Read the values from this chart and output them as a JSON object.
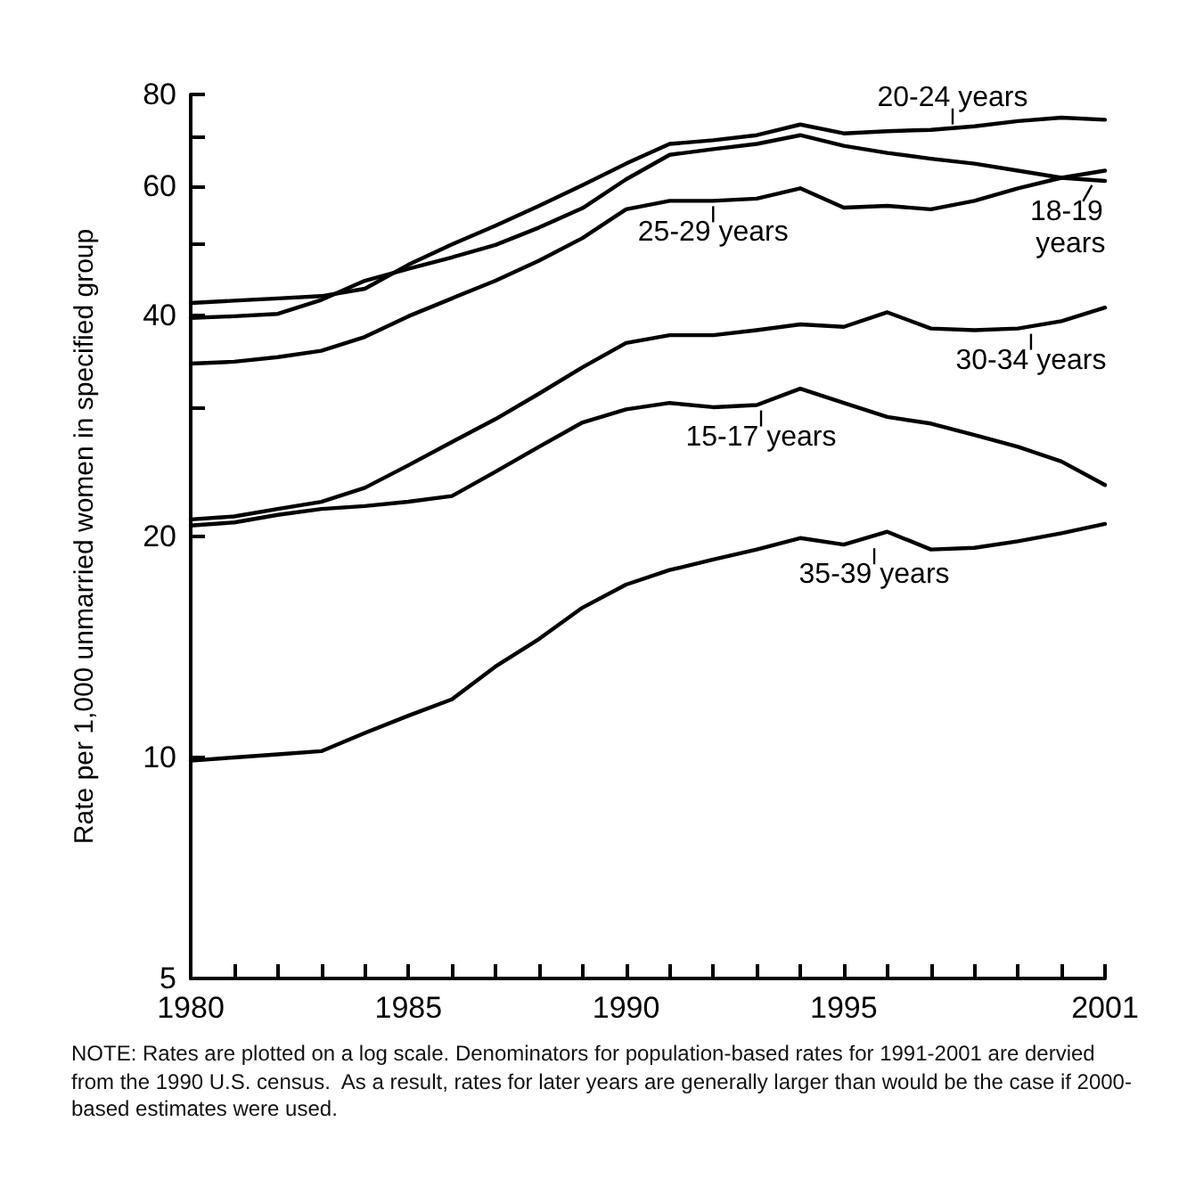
{
  "chart_data": {
    "type": "line",
    "ylabel": "Rate per 1,000 unmarried women in specified group",
    "x": [
      1980,
      1981,
      1982,
      1983,
      1984,
      1985,
      1986,
      1987,
      1988,
      1989,
      1990,
      1991,
      1992,
      1993,
      1994,
      1995,
      1996,
      1997,
      1998,
      1999,
      2000,
      2001
    ],
    "series": [
      {
        "color": "#000000",
        "values": [
          41.6,
          41.9,
          42.2,
          42.5,
          43.5,
          46.9,
          50,
          53,
          56.4,
          60.2,
          64.4,
          68.5,
          69.3,
          70.4,
          72.8,
          70.8,
          71.3,
          71.6,
          72.4,
          73.6,
          74.4,
          73.9
        ]
      },
      {
        "color": "#000000",
        "values": [
          39.7,
          39.9,
          40.2,
          42,
          44.6,
          46.3,
          48,
          49.9,
          52.7,
          56,
          61.3,
          66.2,
          67.4,
          68.5,
          70.4,
          68.1,
          66.6,
          65.4,
          64.4,
          63,
          61.6,
          61
        ]
      },
      {
        "color": "#000000",
        "values": [
          34.4,
          34.6,
          35.1,
          35.8,
          37.4,
          39.9,
          42.2,
          44.6,
          47.5,
          51,
          55.8,
          57.3,
          57.3,
          57.7,
          59.6,
          56.1,
          56.4,
          55.8,
          57.3,
          59.6,
          61.6,
          63
        ]
      },
      {
        "color": "#000000",
        "values": [
          21.1,
          21.3,
          21.8,
          22.3,
          23.3,
          25,
          26.9,
          28.9,
          31.3,
          34,
          36.7,
          37.6,
          37.6,
          38.2,
          38.9,
          38.6,
          40.4,
          38.4,
          38.2,
          38.4,
          39.3,
          41
        ]
      },
      {
        "color": "#000000",
        "values": [
          20.7,
          20.9,
          21.4,
          21.8,
          22,
          22.3,
          22.7,
          24.5,
          26.5,
          28.6,
          29.8,
          30.4,
          30,
          30.2,
          31.8,
          30.4,
          29.1,
          28.5,
          27.5,
          26.5,
          25.3,
          23.5
        ]
      },
      {
        "color": "#000000",
        "values": [
          9.9,
          10,
          10.1,
          10.2,
          10.8,
          11.4,
          12,
          13.3,
          14.5,
          16,
          17.2,
          18,
          18.6,
          19.2,
          19.9,
          19.5,
          20.3,
          19.2,
          19.3,
          19.7,
          20.2,
          20.8
        ]
      }
    ],
    "log": "y",
    "xlim": [
      1980,
      2001
    ],
    "xticks": [
      1980,
      {
        "value": 1981,
        "label": null
      },
      {
        "value": 1982,
        "label": null
      },
      {
        "value": 1983,
        "label": null
      },
      {
        "value": 1984,
        "label": null
      },
      1985,
      {
        "value": 1986,
        "label": null
      },
      {
        "value": 1987,
        "label": null
      },
      {
        "value": 1988,
        "label": null
      },
      {
        "value": 1989,
        "label": null
      },
      1990,
      {
        "value": 1991,
        "label": null
      },
      {
        "value": 1992,
        "label": null
      },
      {
        "value": 1993,
        "label": null
      },
      {
        "value": 1994,
        "label": null
      },
      1995,
      {
        "value": 1996,
        "label": null
      },
      {
        "value": 1997,
        "label": null
      },
      {
        "value": 1998,
        "label": null
      },
      {
        "value": 1999,
        "label": null
      },
      {
        "value": 2000,
        "label": null
      },
      2001
    ],
    "ylim": [
      5,
      80
    ],
    "yticks": [
      5,
      10,
      20,
      {
        "value": 30,
        "label": null
      },
      40,
      {
        "value": 50,
        "label": null
      },
      60,
      {
        "value": 70,
        "label": null
      },
      80
    ],
    "grid": false,
    "marker": "none",
    "line_style": "solid",
    "annotations": [
      {
        "text": "20-24 years",
        "x": 1997.5,
        "y": 71.6
      },
      {
        "text": "25-29 years",
        "x": 1992,
        "y": 57.3
      },
      {
        "text": "18-19 years",
        "x": 2000.7,
        "y": 61.2
      },
      {
        "text": "30-34 years",
        "x": 1999.3,
        "y": 38.4
      },
      {
        "text": "15-17 years",
        "x": 1993.1,
        "y": 30.2
      },
      {
        "text": "35-39 years",
        "x": 1995.7,
        "y": 19.6
      },
      "NOTE: Rates are plotted on a log scale. Denominators for population-based rates for 1991-2001 are dervied from the 1990 U.S. census.  As a result, rates for later years are generally larger than would be the case if 2000-based estimates were used."
    ]
  }
}
